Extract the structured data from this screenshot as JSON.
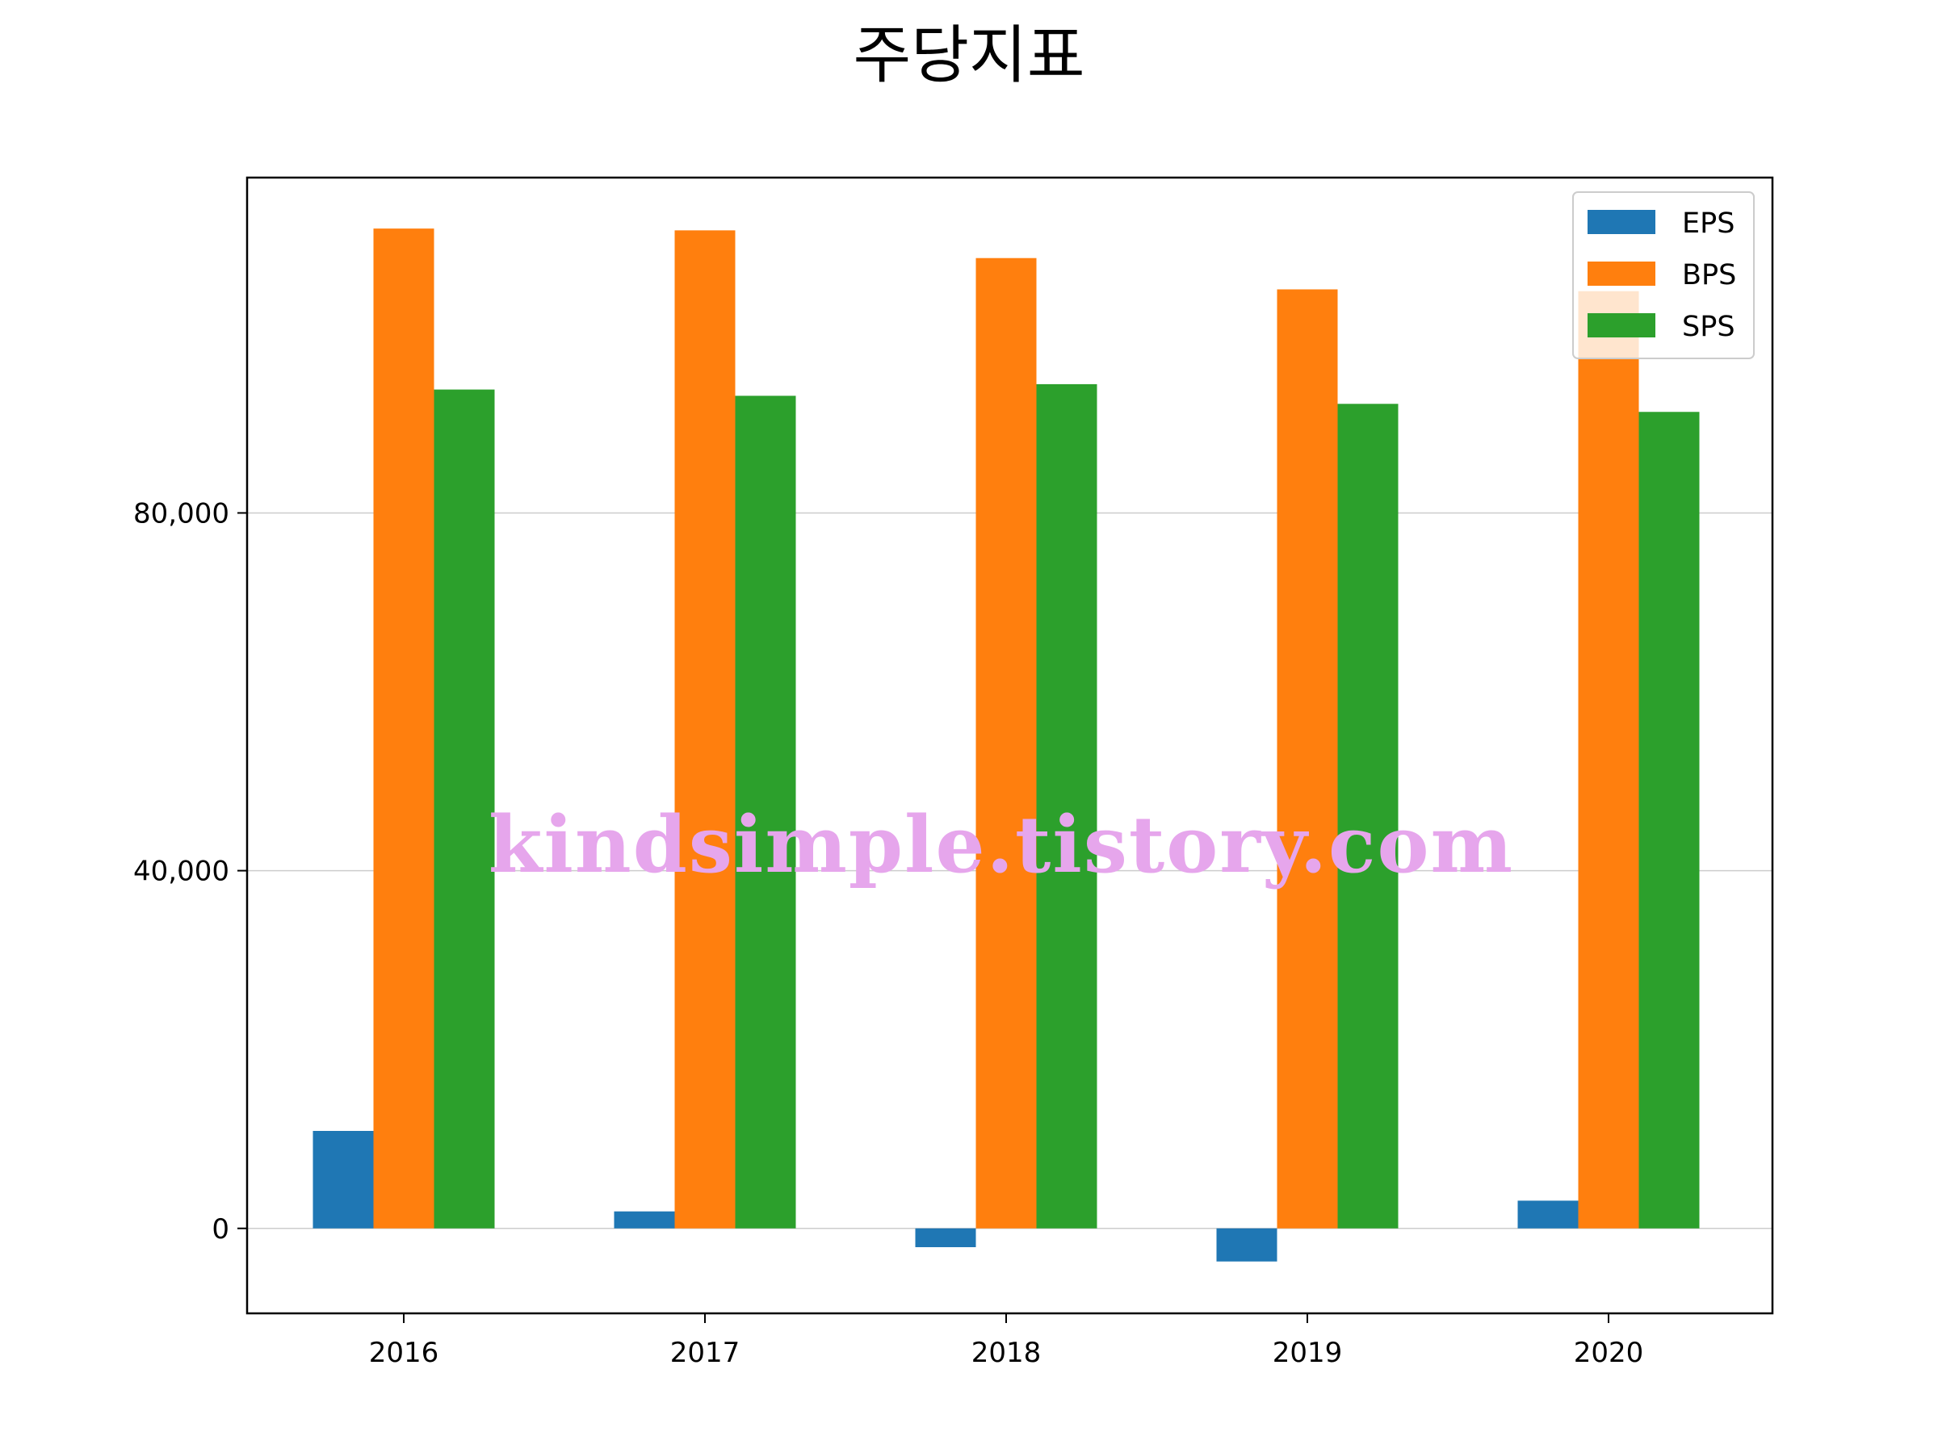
{
  "chart_data": {
    "type": "bar",
    "title": "주당지표",
    "xlabel": "",
    "ylabel": "",
    "categories": [
      "2016",
      "2017",
      "2018",
      "2019",
      "2020"
    ],
    "series": [
      {
        "name": "EPS",
        "color": "#1f77b4",
        "values": [
          10900,
          1900,
          -2100,
          -3700,
          3100
        ]
      },
      {
        "name": "BPS",
        "color": "#ff7f0e",
        "values": [
          111800,
          111600,
          108500,
          105000,
          104800
        ]
      },
      {
        "name": "SPS",
        "color": "#2ca02c",
        "values": [
          93800,
          93100,
          94400,
          92200,
          91300
        ]
      }
    ],
    "ylim": [
      -9500,
      117500
    ],
    "yticks": [
      0,
      40000,
      80000
    ],
    "ytick_labels": [
      "0",
      "40,000",
      "80,000"
    ],
    "grid": "horizontal",
    "legend_position": "top-right",
    "watermark": {
      "text": "kindsimple.tistory.com",
      "color": "#e6a6ec"
    }
  }
}
